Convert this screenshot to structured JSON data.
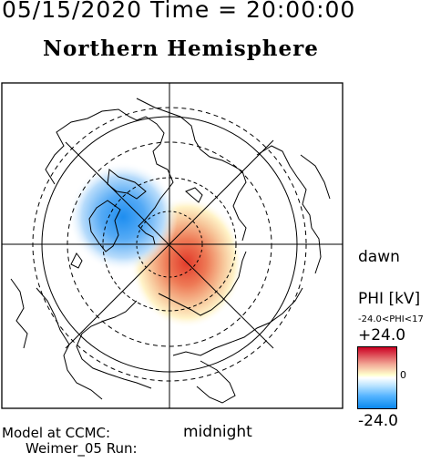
{
  "header": {
    "datetime": "05/15/2020 Time = 20:00:00",
    "hemisphere": "Northern Hemisphere"
  },
  "map": {
    "side_label": "dawn",
    "bottom_label": "midnight",
    "positive_cell_color": "#e23a2a",
    "negative_cell_color": "#1e8ef0"
  },
  "colorbar": {
    "title": "PHI [kV]",
    "range_text": "-24.0<PHI<17",
    "max_label": "+24.0",
    "zero_label": "0",
    "min_label": "-24.0"
  },
  "footer": {
    "model_line1": "Model at CCMC:",
    "model_line2": "Weimer_05 Run:"
  }
}
